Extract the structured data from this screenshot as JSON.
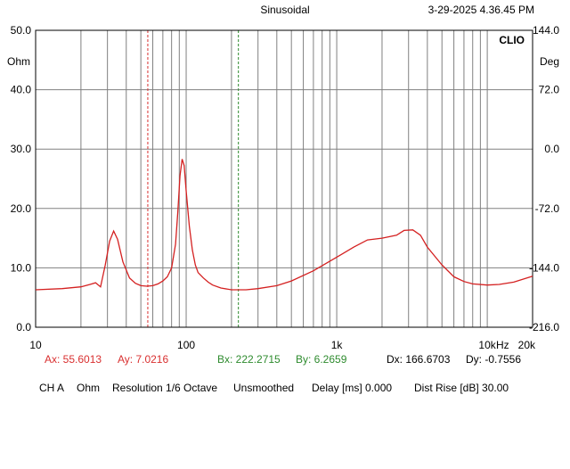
{
  "header": {
    "mode": "Sinusoidal",
    "timestamp": "3-29-2025 4.36.45 PM",
    "brand": "CLIO"
  },
  "axes": {
    "left_unit": "Ohm",
    "right_unit": "Deg",
    "left_ticks": [
      "50.0",
      "40.0",
      "30.0",
      "20.0",
      "10.0",
      "0.0"
    ],
    "right_ticks": [
      "144.0",
      "72.0",
      "0.0",
      "-72.0",
      "-144.0",
      "-216.0"
    ],
    "x_ticks": [
      "10",
      "100",
      "1k",
      "10k",
      "20k"
    ],
    "x_unit": "Hz"
  },
  "cursors": {
    "a_x": "Ax: 55.6013",
    "a_y": "Ay: 7.0216",
    "b_x": "Bx: 222.2715",
    "b_y": "By: 6.2659",
    "dx": "Dx: 166.6703",
    "dy": "Dy: -0.7556",
    "a_color": "#d93030",
    "b_color": "#2e8b2e"
  },
  "status": {
    "channel": "CH A",
    "unit": "Ohm",
    "resolution": "Resolution 1/6 Octave",
    "smoothing": "Unsmoothed",
    "delay": "Delay [ms] 0.000",
    "dist_rise": "Dist Rise [dB] 30.00"
  },
  "chart_data": {
    "type": "line",
    "xscale": "log",
    "xlim": [
      10,
      20000
    ],
    "ylim": [
      0,
      50
    ],
    "y2lim": [
      -216,
      144
    ],
    "grid": true,
    "cursor_a_x": 55.6013,
    "cursor_b_x": 222.2715,
    "series": [
      {
        "color": "#d42020",
        "x": [
          10,
          15,
          20,
          23,
          25,
          27,
          29,
          31,
          33,
          35,
          38,
          42,
          46,
          50,
          55,
          60,
          65,
          70,
          75,
          80,
          85,
          88,
          91,
          94,
          97,
          100,
          105,
          110,
          115,
          120,
          130,
          140,
          150,
          170,
          200,
          250,
          300,
          400,
          500,
          700,
          1000,
          1300,
          1600,
          2000,
          2500,
          2800,
          3200,
          3600,
          4000,
          5000,
          6000,
          7000,
          8000,
          10000,
          12000,
          15000,
          20000
        ],
        "y": [
          6.3,
          6.5,
          6.8,
          7.2,
          7.5,
          6.8,
          10.5,
          14.5,
          16.2,
          14.8,
          11.0,
          8.3,
          7.4,
          7.0,
          6.9,
          7.0,
          7.3,
          7.8,
          8.5,
          10.0,
          14.0,
          19.5,
          25.5,
          28.3,
          27.2,
          23.0,
          17.0,
          13.0,
          10.5,
          9.2,
          8.3,
          7.6,
          7.1,
          6.6,
          6.3,
          6.3,
          6.5,
          7.0,
          7.8,
          9.5,
          11.8,
          13.5,
          14.7,
          15.0,
          15.5,
          16.3,
          16.4,
          15.5,
          13.5,
          10.5,
          8.5,
          7.7,
          7.3,
          7.1,
          7.2,
          7.6,
          8.6
        ]
      }
    ]
  }
}
